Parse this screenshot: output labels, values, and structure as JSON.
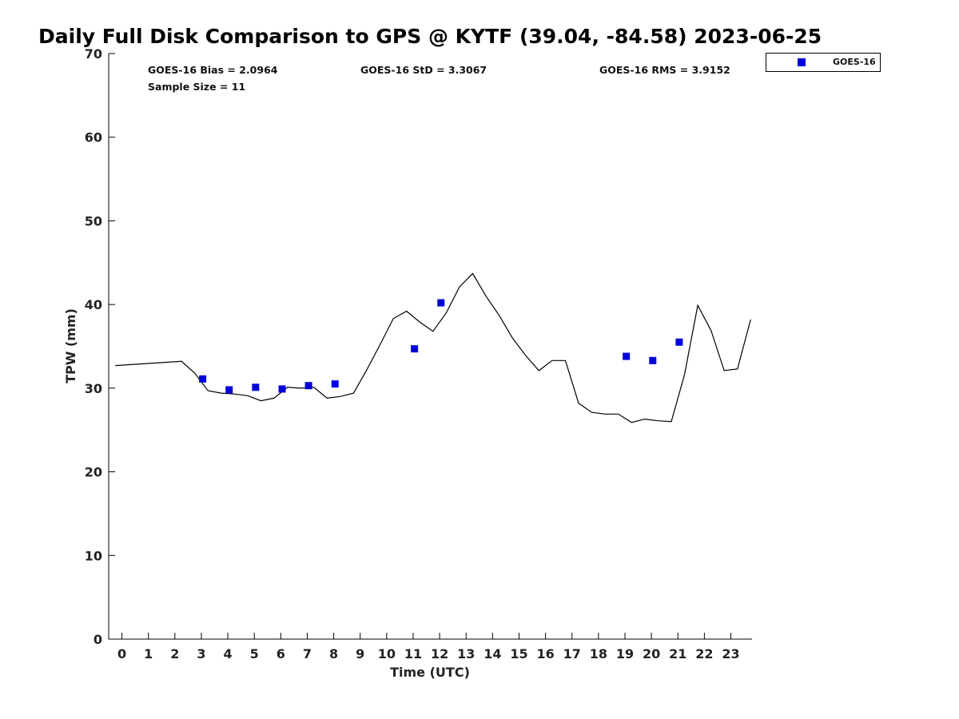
{
  "chart_data": {
    "type": "scatter",
    "title": "Daily Full Disk Comparison to GPS @ KYTF (39.04, -84.58) 2023-06-25",
    "xlabel": "Time (UTC)",
    "ylabel": "TPW (mm)",
    "xlim": [
      -0.5,
      23.8
    ],
    "ylim": [
      0,
      70
    ],
    "x_ticks": [
      0,
      1,
      2,
      3,
      4,
      5,
      6,
      7,
      8,
      9,
      10,
      11,
      12,
      13,
      14,
      15,
      16,
      17,
      18,
      19,
      20,
      21,
      22,
      23
    ],
    "y_ticks": [
      0,
      10,
      20,
      30,
      40,
      50,
      60,
      70
    ],
    "grid": false,
    "legend_position": "top-right",
    "stats": {
      "bias": "GOES-16 Bias = 2.0964",
      "std": "GOES-16 StD = 3.3067",
      "rms": "GOES-16 RMS = 3.9152",
      "sample": "Sample Size = 11"
    },
    "series": [
      {
        "name": "GOES-16",
        "type": "scatter",
        "color": "#0000dd",
        "x": [
          3.05,
          4.05,
          5.05,
          6.05,
          7.05,
          8.05,
          11.05,
          12.05,
          19.05,
          20.05,
          21.05
        ],
        "y": [
          31.1,
          29.8,
          30.1,
          29.9,
          30.3,
          30.5,
          34.7,
          40.2,
          33.8,
          33.3,
          35.5
        ]
      },
      {
        "type": "line",
        "color": "#000000",
        "x": [
          -0.25,
          2.25,
          2.75,
          3.25,
          3.75,
          4.25,
          4.75,
          5.25,
          5.75,
          6.25,
          6.75,
          7.25,
          7.75,
          8.25,
          8.75,
          9.25,
          9.75,
          10.25,
          10.75,
          11.25,
          11.75,
          12.25,
          12.75,
          13.25,
          13.75,
          14.25,
          14.75,
          15.25,
          15.75,
          16.25,
          16.75,
          17.25,
          17.75,
          18.25,
          18.75,
          19.25,
          19.75,
          20.25,
          20.75,
          21.25,
          21.75,
          22.25,
          22.75,
          23.25,
          23.75
        ],
        "y": [
          32.7,
          33.2,
          31.8,
          29.7,
          29.4,
          29.3,
          29.1,
          28.5,
          28.8,
          30.1,
          30.0,
          30.1,
          28.8,
          29.0,
          29.4,
          32.2,
          35.2,
          38.3,
          39.2,
          37.9,
          36.8,
          39.0,
          42.1,
          43.7,
          41.0,
          38.7,
          36.0,
          33.9,
          32.1,
          33.3,
          33.3,
          28.2,
          27.1,
          26.9,
          26.9,
          25.9,
          26.3,
          26.1,
          26.0,
          31.6,
          39.9,
          36.9,
          32.1,
          32.3,
          38.2
        ]
      }
    ]
  }
}
